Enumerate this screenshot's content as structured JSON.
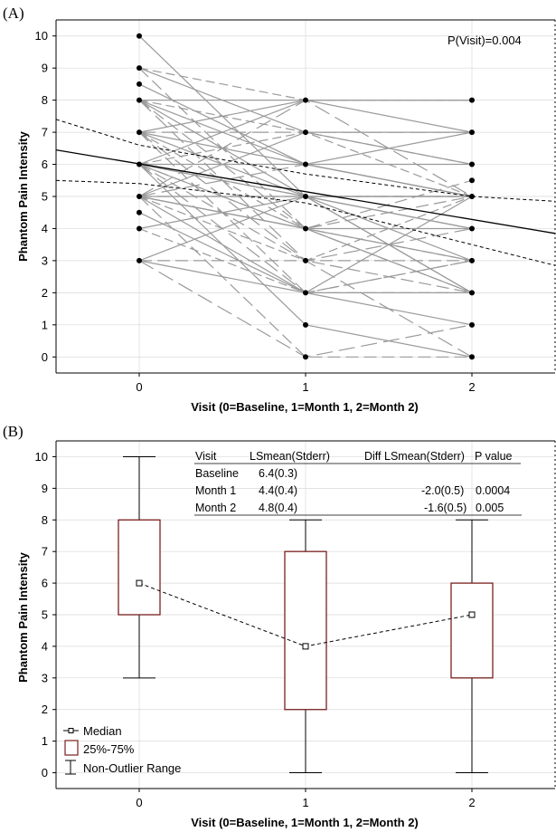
{
  "chart_data": [
    {
      "panel": "(A)",
      "type": "line",
      "xlabel": "Visit (0=Baseline, 1=Month 1, 2=Month 2)",
      "ylabel": "Phantom Pain Intensity",
      "xticks": [
        "0",
        "1",
        "2"
      ],
      "xlim": [
        -0.5,
        2.5
      ],
      "ylim": [
        -0.5,
        10.5
      ],
      "yticks": [
        0,
        1,
        2,
        3,
        4,
        5,
        6,
        7,
        8,
        9,
        10
      ],
      "grid": true,
      "annotation": "P(Visit)=0.004",
      "individual_points": [
        {
          "x": 0,
          "y": [
            3,
            4,
            4.5,
            5,
            6,
            7,
            8,
            8.5,
            9,
            10
          ]
        },
        {
          "x": 1,
          "y": [
            0,
            1,
            2,
            3,
            4,
            5,
            6,
            7,
            8
          ]
        },
        {
          "x": 2,
          "y": [
            0,
            1,
            2,
            3,
            4,
            5,
            5.5,
            6,
            7,
            8
          ]
        }
      ],
      "individual_trajectories": [
        [
          3,
          2,
          1
        ],
        [
          3,
          3,
          3
        ],
        [
          3,
          5,
          2
        ],
        [
          3,
          0,
          1
        ],
        [
          4,
          5,
          4
        ],
        [
          4,
          2,
          3
        ],
        [
          4.5,
          2,
          5
        ],
        [
          5,
          5,
          5
        ],
        [
          5,
          4,
          3
        ],
        [
          5,
          6,
          5
        ],
        [
          5,
          2,
          2
        ],
        [
          5,
          3,
          5
        ],
        [
          5,
          7,
          6
        ],
        [
          5,
          0,
          0
        ],
        [
          5,
          5,
          4
        ],
        [
          5,
          8,
          5
        ],
        [
          5,
          4,
          2
        ],
        [
          6,
          5,
          5
        ],
        [
          6,
          4,
          4
        ],
        [
          6,
          3,
          2
        ],
        [
          6,
          6,
          6
        ],
        [
          6,
          2,
          3
        ],
        [
          6,
          5,
          3
        ],
        [
          6,
          7,
          5
        ],
        [
          6,
          1,
          0
        ],
        [
          6,
          4,
          5.5
        ],
        [
          6,
          8,
          7
        ],
        [
          7,
          7,
          7
        ],
        [
          7,
          5,
          5
        ],
        [
          7,
          4,
          3
        ],
        [
          7,
          6,
          5
        ],
        [
          7,
          2,
          2
        ],
        [
          7,
          8,
          8
        ],
        [
          7,
          3,
          4
        ],
        [
          8,
          8,
          8
        ],
        [
          8,
          7,
          6
        ],
        [
          8,
          5,
          5
        ],
        [
          8,
          4,
          2
        ],
        [
          8,
          6,
          7
        ],
        [
          8,
          3,
          0
        ],
        [
          8.5,
          6,
          5
        ],
        [
          9,
          8,
          8
        ],
        [
          9,
          7,
          7
        ],
        [
          9,
          4,
          5
        ],
        [
          10,
          5,
          2
        ]
      ],
      "fit_line": {
        "x": [
          -0.5,
          2.5
        ],
        "y": [
          6.45,
          3.85
        ]
      },
      "ci_upper": {
        "x": [
          -0.5,
          0,
          1,
          2,
          2.5
        ],
        "y": [
          7.4,
          6.6,
          5.7,
          5.0,
          4.85
        ]
      },
      "ci_lower": {
        "x": [
          -0.5,
          0,
          1,
          2,
          2.5
        ],
        "y": [
          5.5,
          5.4,
          4.8,
          3.5,
          2.85
        ]
      }
    },
    {
      "panel": "(B)",
      "type": "box",
      "xlabel": "Visit (0=Baseline, 1=Month 1, 2=Month 2)",
      "ylabel": "Phantom Pain Intensity",
      "categories": [
        "0",
        "1",
        "2"
      ],
      "xlim": [
        -0.5,
        2.5
      ],
      "ylim": [
        -0.5,
        10.5
      ],
      "yticks": [
        0,
        1,
        2,
        3,
        4,
        5,
        6,
        7,
        8,
        9,
        10
      ],
      "boxes": [
        {
          "x": 0,
          "median": 6,
          "q1": 5,
          "q3": 8,
          "min": 3,
          "max": 10
        },
        {
          "x": 1,
          "median": 4,
          "q1": 2,
          "q3": 7,
          "min": 0,
          "max": 8
        },
        {
          "x": 2,
          "median": 5,
          "q1": 3,
          "q3": 6,
          "min": 0,
          "max": 8
        }
      ],
      "box_color": "#7a1f1f",
      "table": {
        "headers": [
          "Visit",
          "LSmean(Stderr)",
          "Diff LSmean(Stderr)",
          "P value"
        ],
        "rows": [
          [
            "Baseline",
            "6.4(0.3)",
            "",
            ""
          ],
          [
            "Month 1",
            "4.4(0.4)",
            "-2.0(0.5)",
            "0.0004"
          ],
          [
            "Month 2",
            "4.8(0.4)",
            "-1.6(0.5)",
            "0.005"
          ]
        ]
      },
      "legend": {
        "position": "bottom-left",
        "entries": [
          "Median",
          "25%-75%",
          "Non-Outlier Range"
        ]
      }
    }
  ]
}
